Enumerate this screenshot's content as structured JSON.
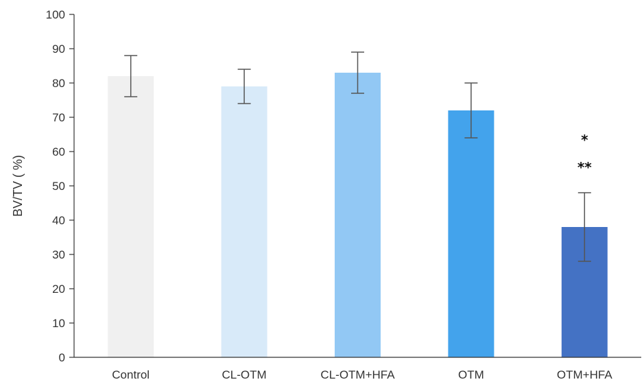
{
  "chart_data": {
    "type": "bar",
    "title": "",
    "xlabel": "",
    "ylabel": "BV/TV ( %)",
    "ylim": [
      0,
      100
    ],
    "yticks": [
      0,
      10,
      20,
      30,
      40,
      50,
      60,
      70,
      80,
      90,
      100
    ],
    "categories": [
      "Control",
      "CL-OTM",
      "CL-OTM+HFA",
      "OTM",
      "OTM+HFA"
    ],
    "values": [
      82,
      79,
      83,
      72,
      38
    ],
    "errors": [
      6,
      5,
      6,
      8,
      10
    ],
    "colors": [
      "#f0f0f0",
      "#d8eaf9",
      "#92c8f4",
      "#43a3ec",
      "#4472c4"
    ],
    "error_bar_color": "#555555",
    "grid": false,
    "legend": "none",
    "annotations": [
      {
        "category": "OTM+HFA",
        "lines": [
          "*",
          "**"
        ]
      }
    ]
  }
}
